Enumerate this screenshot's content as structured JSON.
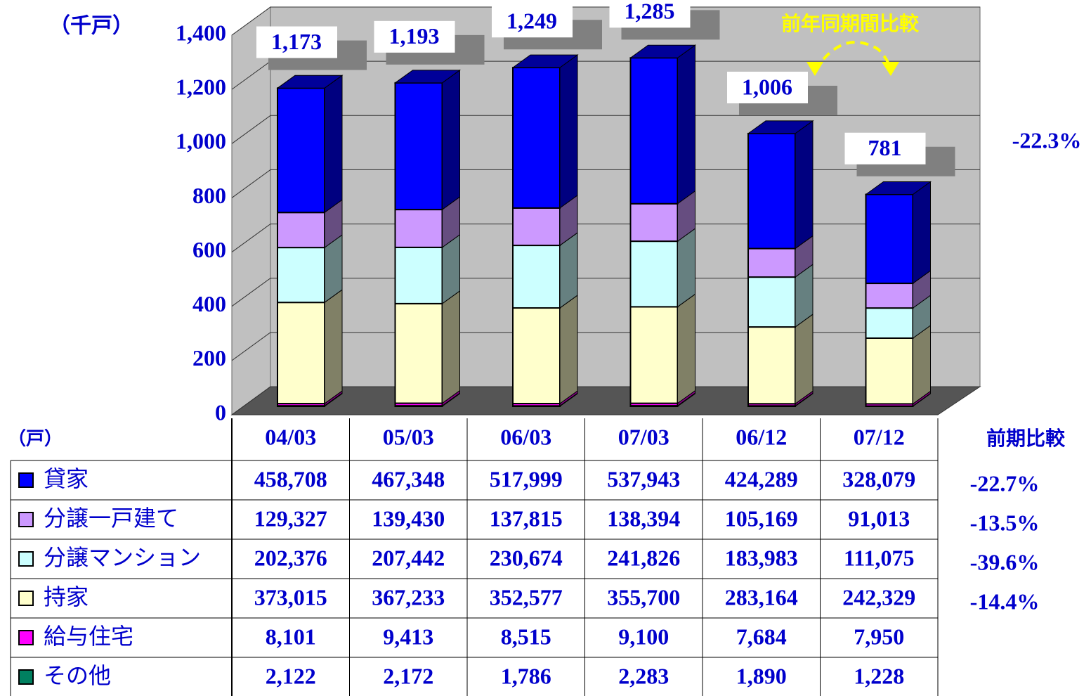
{
  "chart_data": {
    "type": "bar",
    "stacked": true,
    "unit_label": "（千戸）",
    "annotation": "前年同期間比較",
    "categories": [
      "04/03",
      "05/03",
      "06/03",
      "07/03",
      "06/12",
      "07/12"
    ],
    "ylim": [
      0,
      1400
    ],
    "yticks": [
      0,
      200,
      400,
      600,
      800,
      {
        "value": 1000,
        "label": "1,000"
      },
      {
        "value": 1200,
        "label": "1,200"
      },
      {
        "value": 1400,
        "label": "1,400"
      }
    ],
    "grid": true,
    "series": [
      {
        "name": "貸家",
        "color": "#0000ff",
        "values": [
          458.708,
          467.348,
          517.999,
          537.943,
          424.289,
          328.079
        ],
        "value_labels": [
          "458,708",
          "467,348",
          "517,999",
          "537,943",
          "424,289",
          "328,079"
        ],
        "change": -22.7,
        "change_label": "-22.7%"
      },
      {
        "name": "分譲一戸建て",
        "color": "#cc99ff",
        "values": [
          129.327,
          139.43,
          137.815,
          138.394,
          105.169,
          91.013
        ],
        "value_labels": [
          "129,327",
          "139,430",
          "137,815",
          "138,394",
          "105,169",
          "91,013"
        ],
        "change": -13.5,
        "change_label": "-13.5%"
      },
      {
        "name": "分譲マンション",
        "color": "#ccffff",
        "values": [
          202.376,
          207.442,
          230.674,
          241.826,
          183.983,
          111.075
        ],
        "value_labels": [
          "202,376",
          "207,442",
          "230,674",
          "241,826",
          "183,983",
          "111,075"
        ],
        "change": -39.6,
        "change_label": "-39.6%"
      },
      {
        "name": "持家",
        "color": "#ffffcc",
        "values": [
          373.015,
          367.233,
          352.577,
          355.7,
          283.164,
          242.329
        ],
        "value_labels": [
          "373,015",
          "367,233",
          "352,577",
          "355,700",
          "283,164",
          "242,329"
        ],
        "change": -14.4,
        "change_label": "-14.4%"
      },
      {
        "name": "給与住宅",
        "color": "#ff00ff",
        "values": [
          8.101,
          9.413,
          8.515,
          9.1,
          7.684,
          7.95
        ],
        "value_labels": [
          "8,101",
          "9,413",
          "8,515",
          "9,100",
          "7,684",
          "7,950"
        ]
      },
      {
        "name": "その他",
        "color": "#008060",
        "values": [
          2.122,
          2.172,
          1.786,
          2.283,
          1.89,
          1.228
        ],
        "value_labels": [
          "2,122",
          "2,172",
          "1,786",
          "2,283",
          "1,890",
          "1,228"
        ]
      }
    ],
    "totals": {
      "values": [
        1173,
        1193,
        1249,
        1285,
        1006,
        781
      ],
      "value_labels": [
        "1,173",
        "1,193",
        "1,249",
        "1,285",
        "1,006",
        "781"
      ]
    },
    "total_change": {
      "value": -22.3,
      "label": "-22.3%"
    },
    "table": {
      "unit_label": "（戸）",
      "change_header": "前期比較"
    }
  }
}
